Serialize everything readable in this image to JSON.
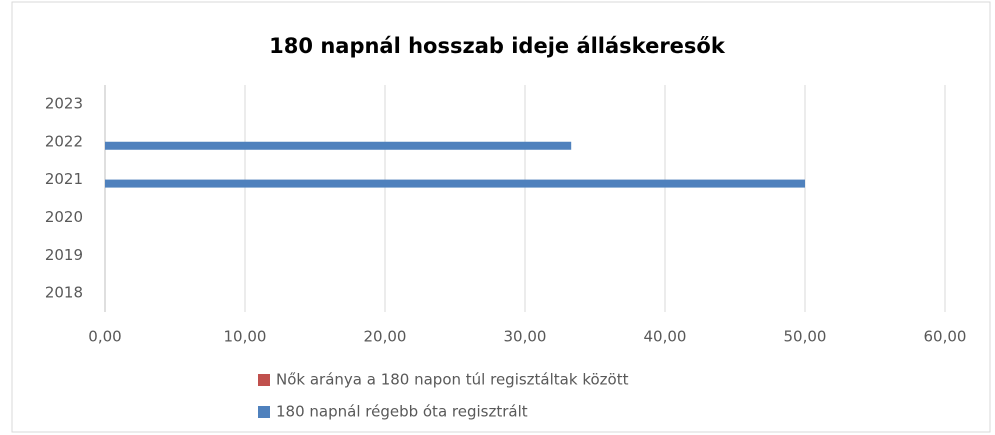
{
  "chart_data": {
    "type": "hbar",
    "title": "180 napnál hosszab ideje álláskeresők",
    "categories": [
      "2018",
      "2019",
      "2020",
      "2021",
      "2022",
      "2023"
    ],
    "series": [
      {
        "name": "Nők aránya a 180 napon túl regisztáltak között",
        "color": "#c0504d",
        "values": [
          null,
          null,
          null,
          null,
          null,
          null
        ]
      },
      {
        "name": "180 napnál régebb óta regisztrált",
        "color": "#4f81bd",
        "values": [
          null,
          null,
          null,
          50,
          33.3,
          null
        ]
      }
    ],
    "xlim": [
      0,
      60
    ],
    "xticks": [
      {
        "value": 0,
        "label": "0,00"
      },
      {
        "value": 10,
        "label": "10,00"
      },
      {
        "value": 20,
        "label": "20,00"
      },
      {
        "value": 30,
        "label": "30,00"
      },
      {
        "value": 40,
        "label": "40,00"
      },
      {
        "value": 50,
        "label": "50,00"
      },
      {
        "value": 60,
        "label": "60,00"
      }
    ],
    "grid": true,
    "legend": "bottom"
  }
}
